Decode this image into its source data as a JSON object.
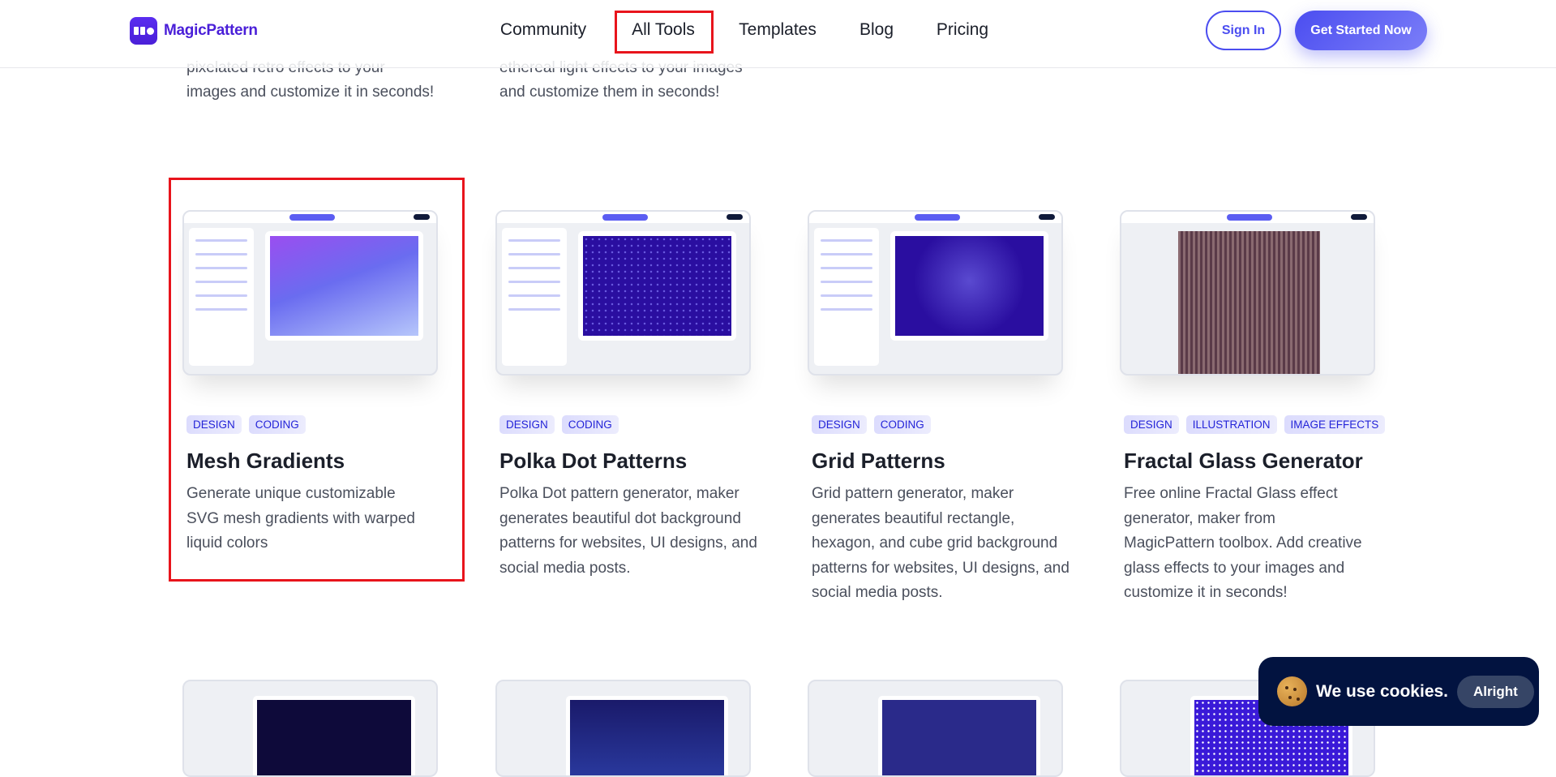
{
  "header": {
    "brand": "MagicPattern",
    "nav": [
      "Community",
      "All Tools",
      "Templates",
      "Blog",
      "Pricing"
    ],
    "sign_in": "Sign In",
    "get_started": "Get Started Now",
    "highlighted_nav": "All Tools"
  },
  "top_partial": [
    [
      "pixelated retro effects to your",
      "images and customize it in seconds!"
    ],
    [
      "ethereal light effects to your images",
      "and customize them in seconds!"
    ]
  ],
  "cards": [
    {
      "tags": [
        "DESIGN",
        "CODING"
      ],
      "title": "Mesh Gradients",
      "desc": "Generate unique customizable SVG mesh gradients with warped liquid colors",
      "highlighted": true
    },
    {
      "tags": [
        "DESIGN",
        "CODING"
      ],
      "title": "Polka Dot Patterns",
      "desc": "Polka Dot pattern generator, maker generates beautiful dot background patterns for websites, UI designs, and social media posts."
    },
    {
      "tags": [
        "DESIGN",
        "CODING"
      ],
      "title": "Grid Patterns",
      "desc": "Grid pattern generator, maker generates beautiful rectangle, hexagon, and cube grid background patterns for websites, UI designs, and social media posts."
    },
    {
      "tags": [
        "DESIGN",
        "ILLUSTRATION",
        "IMAGE EFFECTS"
      ],
      "title": "Fractal Glass Generator",
      "desc": "Free online Fractal Glass effect generator, maker from MagicPattern toolbox. Add creative glass effects to your images and customize it in seconds!"
    }
  ],
  "cookie": {
    "text": "We use cookies.",
    "button": "Alright"
  },
  "colors": {
    "brand": "#4a1fd8",
    "accent": "#4b4df0",
    "highlight": "#e8141c",
    "cookie_bg": "#021340"
  }
}
